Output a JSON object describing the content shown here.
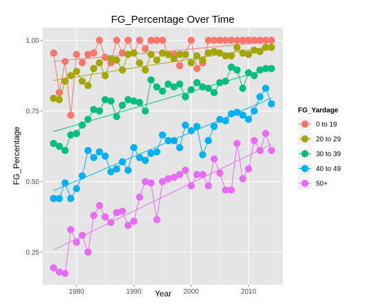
{
  "chart_data": {
    "type": "scatter",
    "title": "FG_Percentage Over Time",
    "xlabel": "Year",
    "ylabel": "FG_Percentage",
    "xlim": [
      1974.1,
      2016.0
    ],
    "ylim": [
      0.135,
      1.045
    ],
    "x_ticks": [
      1980,
      1990,
      2000,
      2010
    ],
    "y_ticks": [
      0.25,
      0.5,
      0.75,
      1.0
    ],
    "y_tick_labels": [
      "0.25",
      "0.50",
      "0.75",
      "1.00"
    ],
    "grid": true,
    "legend_position": "right",
    "legend_title": "FG_Yardage",
    "trend_lines": true,
    "x": [
      1976,
      1977,
      1978,
      1979,
      1980,
      1981,
      1982,
      1983,
      1984,
      1985,
      1986,
      1987,
      1988,
      1989,
      1990,
      1991,
      1992,
      1993,
      1994,
      1995,
      1996,
      1997,
      1998,
      1999,
      2000,
      2001,
      2002,
      2003,
      2004,
      2005,
      2006,
      2007,
      2008,
      2009,
      2010,
      2011,
      2012,
      2013,
      2014
    ],
    "series": [
      {
        "name": "0 to 19",
        "color": "#F8766D",
        "values": [
          0.955,
          0.815,
          0.925,
          0.735,
          0.95,
          0.92,
          0.95,
          0.955,
          1.0,
          0.94,
          0.92,
          1.0,
          0.955,
          1.0,
          0.955,
          1.0,
          0.97,
          1.0,
          1.0,
          1.0,
          0.95,
          0.95,
          0.91,
          0.95,
          1.0,
          0.9,
          0.92,
          1.0,
          1.0,
          1.0,
          1.0,
          1.0,
          1.0,
          1.0,
          1.0,
          1.0,
          1.0,
          1.0,
          1.0
        ],
        "trend": [
          0.925,
          0.995
        ]
      },
      {
        "name": "20 to 29",
        "color": "#A3A500",
        "values": [
          0.795,
          0.79,
          0.855,
          0.875,
          0.89,
          0.855,
          0.84,
          0.9,
          0.92,
          0.875,
          0.935,
          0.93,
          0.895,
          0.95,
          0.955,
          0.92,
          0.895,
          0.95,
          0.93,
          0.955,
          0.95,
          0.935,
          0.95,
          0.95,
          0.92,
          0.945,
          0.93,
          0.955,
          0.96,
          0.955,
          0.945,
          0.945,
          0.975,
          0.955,
          0.95,
          0.965,
          0.96,
          0.975,
          0.975
        ],
        "trend": [
          0.858,
          0.978
        ]
      },
      {
        "name": "30 to 39",
        "color": "#00BF7D",
        "values": [
          0.635,
          0.625,
          0.61,
          0.665,
          0.67,
          0.7,
          0.72,
          0.755,
          0.75,
          0.79,
          0.785,
          0.73,
          0.77,
          0.79,
          0.785,
          0.78,
          0.75,
          0.86,
          0.835,
          0.82,
          0.845,
          0.835,
          0.845,
          0.8,
          0.825,
          0.85,
          0.835,
          0.83,
          0.815,
          0.85,
          0.855,
          0.905,
          0.895,
          0.83,
          0.885,
          0.875,
          0.895,
          0.9,
          0.9
        ],
        "trend": [
          0.677,
          0.902
        ]
      },
      {
        "name": "40 to 49",
        "color": "#00B0F6",
        "values": [
          0.44,
          0.44,
          0.495,
          0.44,
          0.475,
          0.52,
          0.61,
          0.585,
          0.605,
          0.59,
          0.535,
          0.545,
          0.57,
          0.54,
          0.62,
          0.585,
          0.575,
          0.6,
          0.605,
          0.665,
          0.645,
          0.645,
          0.62,
          0.7,
          0.68,
          0.695,
          0.595,
          0.645,
          0.695,
          0.72,
          0.715,
          0.74,
          0.745,
          0.735,
          0.72,
          0.75,
          0.8,
          0.83,
          0.775
        ],
        "trend": [
          0.468,
          0.795
        ]
      },
      {
        "name": "50+",
        "color": "#E76BF3",
        "values": [
          0.195,
          0.18,
          0.175,
          0.33,
          0.285,
          0.31,
          0.25,
          0.38,
          0.415,
          0.375,
          0.355,
          0.39,
          0.395,
          0.345,
          0.36,
          0.445,
          0.5,
          0.495,
          0.365,
          0.5,
          0.51,
          0.515,
          0.525,
          0.54,
          0.485,
          0.525,
          0.525,
          0.485,
          0.58,
          0.53,
          0.47,
          0.47,
          0.635,
          0.51,
          0.545,
          0.645,
          0.61,
          0.67,
          0.61
        ],
        "trend": [
          0.258,
          0.632
        ]
      }
    ]
  }
}
